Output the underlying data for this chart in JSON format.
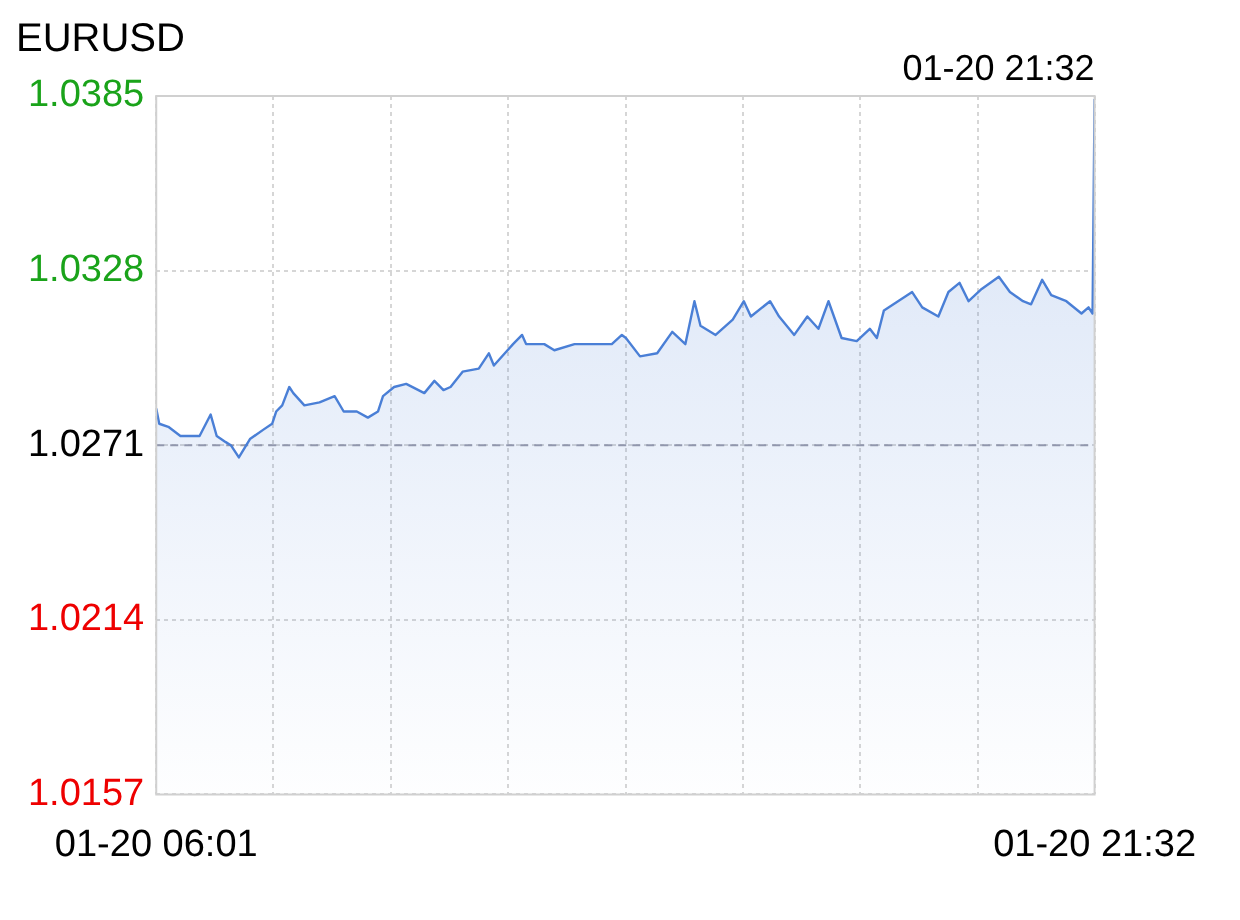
{
  "chart_data": {
    "type": "area",
    "title": "EURUSD",
    "annotations": [
      "01-20 21:32"
    ],
    "xlim": [
      "--01-20T06:01",
      "--01-20T21:32"
    ],
    "xticks": [
      {
        "value": "--01-20T06:01",
        "label": "01-20 06:01"
      },
      {
        "value": "--01-20T07:57",
        "label": null
      },
      {
        "value": "--01-20T09:54",
        "label": null
      },
      {
        "value": "--01-20T11:50",
        "label": null
      },
      {
        "value": "--01-20T13:47",
        "label": null
      },
      {
        "value": "--01-20T15:43",
        "label": null
      },
      {
        "value": "--01-20T17:39",
        "label": null
      },
      {
        "value": "--01-20T19:36",
        "label": null
      },
      {
        "value": "--01-20T21:32",
        "label": "01-20 21:32"
      }
    ],
    "ylim": [
      1.0157,
      1.0385
    ],
    "yticks": [
      1.0157,
      1.0214,
      1.0271,
      1.0328,
      1.0385
    ],
    "grid": true,
    "ref_lines": [
      {
        "axis": "y",
        "value": 1.0271,
        "color": "#9a9aa8",
        "line_style": "dashed"
      }
    ],
    "series": [
      {
        "color": "#4a7fd6",
        "x": [
          "--01-20T06:01",
          "--01-20T06:04",
          "--01-20T06:13",
          "--01-20T06:25",
          "--01-20T06:44",
          "--01-20T06:55",
          "--01-20T07:01",
          "--01-20T07:10",
          "--01-20T07:15",
          "--01-20T07:23",
          "--01-20T07:34",
          "--01-20T07:47",
          "--01-20T07:56",
          "--01-20T08:00",
          "--01-20T08:06",
          "--01-20T08:13",
          "--01-20T08:17",
          "--01-20T08:28",
          "--01-20T08:43",
          "--01-20T08:58",
          "--01-20T09:07",
          "--01-20T09:20",
          "--01-20T09:31",
          "--01-20T09:41",
          "--01-20T09:46",
          "--01-20T09:57",
          "--01-20T10:09",
          "--01-20T10:27",
          "--01-20T10:37",
          "--01-20T10:46",
          "--01-20T10:53",
          "--01-20T11:05",
          "--01-20T11:21",
          "--01-20T11:31",
          "--01-20T11:36",
          "--01-20T11:55",
          "--01-20T12:04",
          "--01-20T12:08",
          "--01-20T12:26",
          "--01-20T12:36",
          "--01-20T12:56",
          "--01-20T13:22",
          "--01-20T13:33",
          "--01-20T13:43",
          "--01-20T13:47",
          "--01-20T14:01",
          "--01-20T14:18",
          "--01-20T14:33",
          "--01-20T14:46",
          "--01-20T14:55",
          "--01-20T15:01",
          "--01-20T15:16",
          "--01-20T15:33",
          "--01-20T15:44",
          "--01-20T15:51",
          "--01-20T16:10",
          "--01-20T16:19",
          "--01-20T16:34",
          "--01-20T16:47",
          "--01-20T16:58",
          "--01-20T17:08",
          "--01-20T17:21",
          "--01-20T17:36",
          "--01-20T17:49",
          "--01-20T17:56",
          "--01-20T18:03",
          "--01-20T18:17",
          "--01-20T18:31",
          "--01-20T18:41",
          "--01-20T18:57",
          "--01-20T19:07",
          "--01-20T19:18",
          "--01-20T19:27",
          "--01-20T19:40",
          "--01-20T19:57",
          "--01-20T20:08",
          "--01-20T20:21",
          "--01-20T20:29",
          "--01-20T20:40",
          "--01-20T20:49",
          "--01-20T21:04",
          "--01-20T21:19",
          "--01-20T21:26",
          "--01-20T21:30",
          "--01-20T21:32"
        ],
        "values": [
          1.0283,
          1.0278,
          1.0277,
          1.0274,
          1.0274,
          1.0281,
          1.0274,
          1.0272,
          1.0271,
          1.0267,
          1.0273,
          1.0276,
          1.0278,
          1.0282,
          1.0284,
          1.029,
          1.0288,
          1.0284,
          1.0285,
          1.0287,
          1.0282,
          1.0282,
          1.028,
          1.0282,
          1.0287,
          1.029,
          1.0291,
          1.0288,
          1.0292,
          1.0289,
          1.029,
          1.0295,
          1.0296,
          1.0301,
          1.0297,
          1.0304,
          1.0307,
          1.0304,
          1.0304,
          1.0302,
          1.0304,
          1.0304,
          1.0304,
          1.0307,
          1.0306,
          1.03,
          1.0301,
          1.0308,
          1.0304,
          1.0318,
          1.031,
          1.0307,
          1.0312,
          1.0318,
          1.0313,
          1.0318,
          1.0313,
          1.0307,
          1.0313,
          1.0309,
          1.0318,
          1.0306,
          1.0305,
          1.0309,
          1.0306,
          1.0315,
          1.0318,
          1.0321,
          1.0316,
          1.0313,
          1.0321,
          1.0324,
          1.0318,
          1.0322,
          1.0326,
          1.0321,
          1.0318,
          1.0317,
          1.0325,
          1.032,
          1.0318,
          1.0314,
          1.0316,
          1.0314,
          1.0384
        ]
      }
    ]
  }
}
